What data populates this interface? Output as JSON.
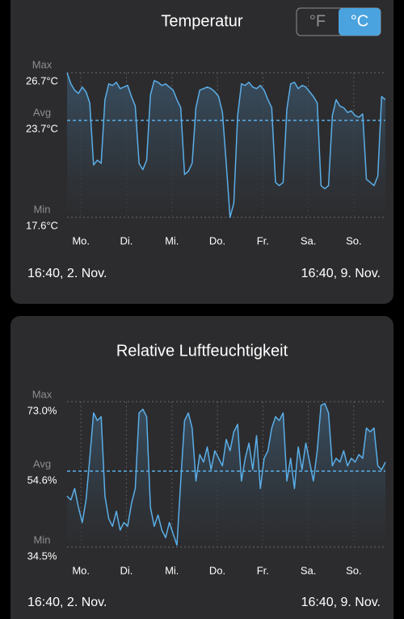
{
  "unit_toggle": [
    "°F",
    "°C"
  ],
  "chart_data": [
    {
      "type": "line",
      "title": "Temperatur",
      "color": "#5aaee8",
      "xlim": [
        0,
        168
      ],
      "xticks": [
        {
          "value": 7.33,
          "label": "Mo."
        },
        {
          "value": 31.33,
          "label": "Di."
        },
        {
          "value": 55.33,
          "label": "Mi."
        },
        {
          "value": 79.33,
          "label": "Do."
        },
        {
          "value": 103.33,
          "label": "Fr."
        },
        {
          "value": 127.33,
          "label": "Sa."
        },
        {
          "value": 151.33,
          "label": "So."
        }
      ],
      "ylim": [
        17.6,
        26.7
      ],
      "ytick_names": [
        "Max",
        "Avg",
        "Min"
      ],
      "yticks": [
        {
          "value": 26.7,
          "label": "26.7°C"
        },
        {
          "value": 23.7,
          "label": "23.7°C"
        },
        {
          "value": 17.6,
          "label": "17.6°C"
        }
      ],
      "start_label": "16:40, 2. Nov.",
      "end_label": "16:40, 9. Nov.",
      "x": [
        0,
        2,
        4,
        6,
        8,
        10,
        12,
        14,
        16,
        18,
        20,
        22,
        24,
        26,
        28,
        30,
        32,
        34,
        36,
        38,
        40,
        42,
        44,
        46,
        48,
        50,
        52,
        54,
        56,
        58,
        60,
        62,
        64,
        66,
        68,
        70,
        72,
        74,
        76,
        78,
        80,
        82,
        84,
        86,
        88,
        90,
        92,
        94,
        96,
        98,
        100,
        102,
        104,
        106,
        108,
        110,
        112,
        114,
        116,
        118,
        120,
        122,
        124,
        126,
        128,
        130,
        132,
        134,
        136,
        138,
        140,
        142,
        144,
        146,
        148,
        150,
        152,
        154,
        156,
        158,
        160,
        162,
        164,
        166,
        168
      ],
      "values": [
        26.7,
        26.0,
        25.6,
        25.4,
        25.8,
        25.5,
        24.8,
        20.9,
        21.2,
        21.0,
        25.0,
        26.0,
        25.9,
        26.1,
        25.7,
        25.8,
        25.9,
        25.2,
        24.6,
        21.0,
        20.6,
        21.2,
        25.3,
        26.2,
        26.1,
        25.9,
        26.0,
        25.8,
        25.6,
        25.0,
        24.5,
        20.3,
        20.5,
        21.0,
        24.5,
        25.6,
        25.7,
        25.8,
        25.7,
        25.5,
        25.2,
        24.2,
        21.0,
        17.6,
        18.5,
        24.0,
        26.0,
        25.9,
        26.1,
        25.8,
        25.7,
        25.9,
        25.6,
        25.0,
        24.5,
        19.8,
        19.6,
        19.8,
        24.4,
        26.0,
        26.1,
        25.7,
        25.9,
        25.8,
        25.5,
        25.2,
        24.8,
        19.6,
        19.4,
        19.6,
        24.0,
        25.0,
        24.6,
        24.5,
        24.2,
        24.3,
        24.0,
        23.9,
        24.1,
        20.0,
        19.8,
        19.6,
        20.2,
        25.2,
        25.0
      ]
    },
    {
      "type": "line",
      "title": "Relative Luftfeuchtigkeit",
      "color": "#5aaee8",
      "xlim": [
        0,
        168
      ],
      "xticks": [
        {
          "value": 7.33,
          "label": "Mo."
        },
        {
          "value": 31.33,
          "label": "Di."
        },
        {
          "value": 55.33,
          "label": "Mi."
        },
        {
          "value": 79.33,
          "label": "Do."
        },
        {
          "value": 103.33,
          "label": "Fr."
        },
        {
          "value": 127.33,
          "label": "Sa."
        },
        {
          "value": 151.33,
          "label": "So."
        }
      ],
      "ylim": [
        34.5,
        73.0
      ],
      "ytick_names": [
        "Max",
        "Avg",
        "Min"
      ],
      "yticks": [
        {
          "value": 73.0,
          "label": "73.0%"
        },
        {
          "value": 54.6,
          "label": "54.6%"
        },
        {
          "value": 34.5,
          "label": "34.5%"
        }
      ],
      "start_label": "16:40, 2. Nov.",
      "end_label": "16:40, 9. Nov.",
      "x": [
        0,
        2,
        4,
        6,
        8,
        10,
        12,
        14,
        16,
        18,
        20,
        22,
        24,
        26,
        28,
        30,
        32,
        34,
        36,
        38,
        40,
        42,
        44,
        46,
        48,
        50,
        52,
        54,
        56,
        58,
        60,
        62,
        64,
        66,
        68,
        70,
        72,
        74,
        76,
        78,
        80,
        82,
        84,
        86,
        88,
        90,
        92,
        94,
        96,
        98,
        100,
        102,
        104,
        106,
        108,
        110,
        112,
        114,
        116,
        118,
        120,
        122,
        124,
        126,
        128,
        130,
        132,
        134,
        136,
        138,
        140,
        142,
        144,
        146,
        148,
        150,
        152,
        154,
        156,
        158,
        160,
        162,
        164,
        166,
        168
      ],
      "values": [
        48,
        47,
        50,
        45,
        41,
        47,
        58,
        70,
        68,
        69,
        48,
        42,
        40,
        44,
        39,
        41,
        40,
        46,
        50,
        70,
        71,
        69,
        45,
        40,
        43,
        39,
        37,
        41,
        38,
        35,
        52,
        68,
        70,
        66,
        52,
        59,
        57,
        61,
        55,
        60,
        58,
        56,
        63,
        60,
        65,
        67,
        52,
        58,
        62,
        55,
        64,
        50,
        58,
        60,
        66,
        69,
        68,
        70,
        52,
        58,
        50,
        61,
        55,
        62,
        57,
        52,
        60,
        72,
        72.5,
        70,
        56,
        58,
        57,
        60,
        56,
        58,
        57,
        59,
        58,
        66,
        65,
        66,
        56,
        55,
        57
      ]
    }
  ]
}
